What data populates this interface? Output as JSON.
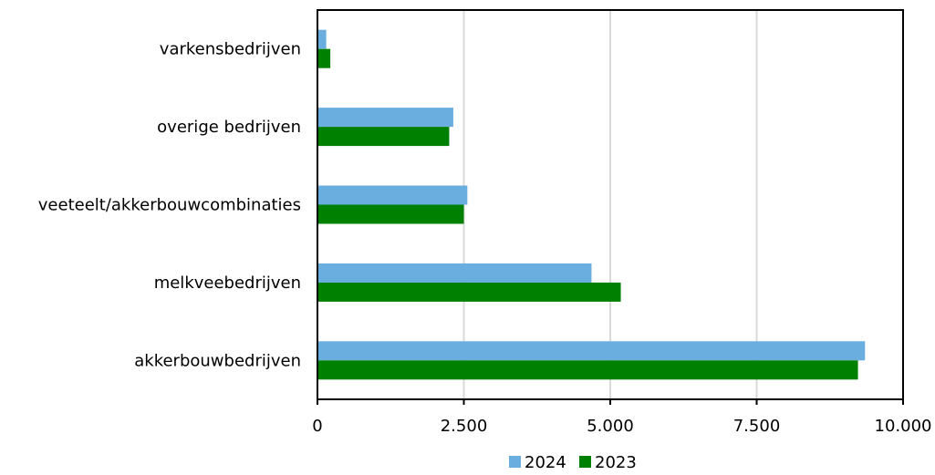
{
  "chart_data": {
    "type": "bar",
    "orientation": "horizontal",
    "title": "",
    "xlabel": "",
    "ylabel": "",
    "categories": [
      "varkensbedrijven",
      "overige bedrijven",
      "veeteelt/akkerbouwcombinaties",
      "melkveebedrijven",
      "akkerbouwbedrijven"
    ],
    "series": [
      {
        "name": "2024",
        "color": "#6aaee0",
        "values": [
          150,
          2320,
          2560,
          4680,
          9350
        ]
      },
      {
        "name": "2023",
        "color": "#008000",
        "values": [
          220,
          2250,
          2500,
          5180,
          9230
        ]
      }
    ],
    "xlim": [
      0,
      10000
    ],
    "x_ticks": [
      0,
      2500,
      5000,
      7500,
      10000
    ],
    "x_tick_labels": [
      "0",
      "2.500",
      "5.000",
      "7.500",
      "10.000"
    ],
    "grid": "vertical",
    "grid_color": "#d9d9d9",
    "legend_position": "bottom"
  }
}
